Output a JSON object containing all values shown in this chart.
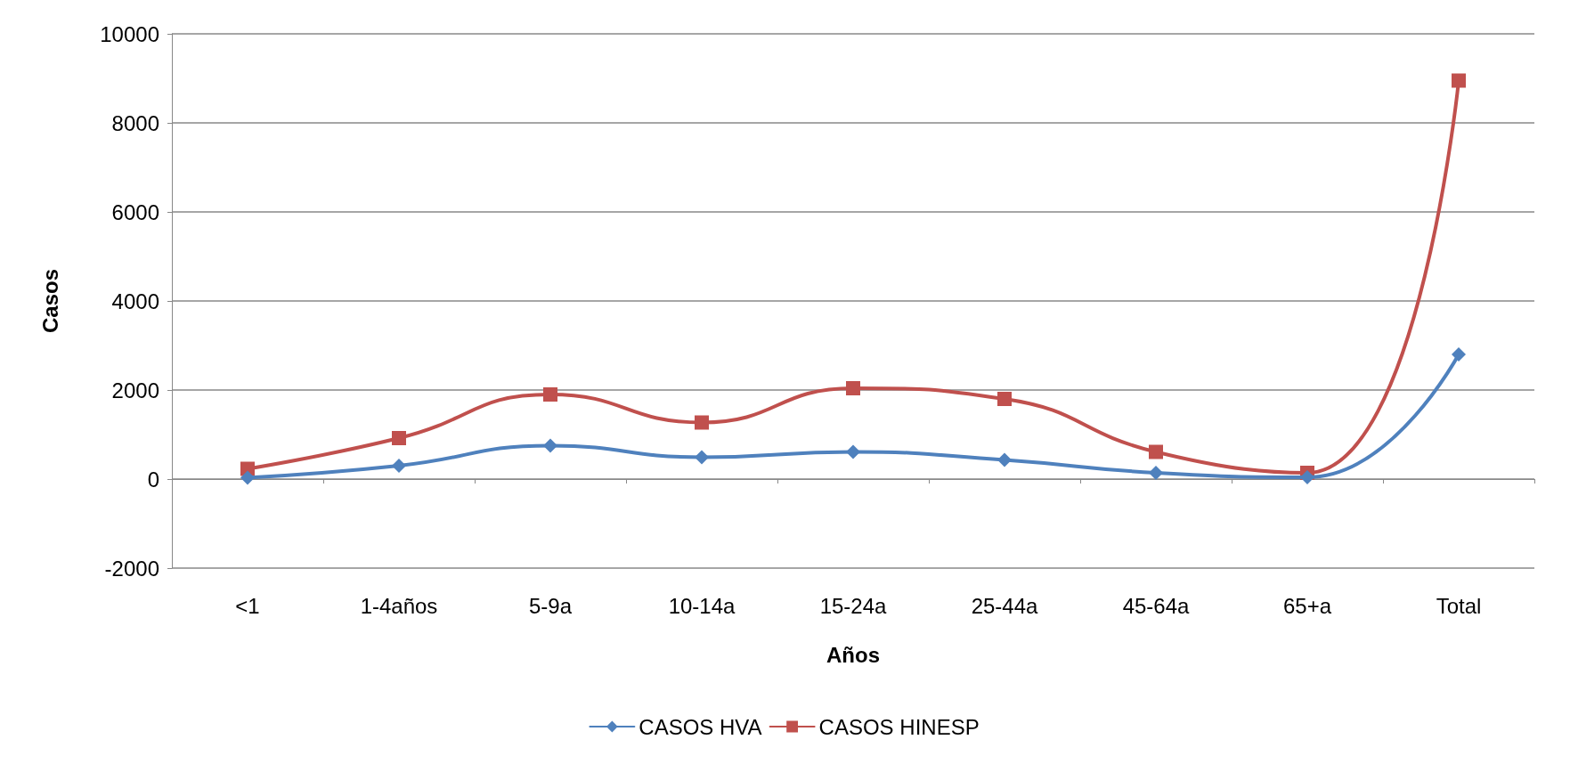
{
  "chart_data": {
    "type": "line",
    "xlabel": "Años",
    "ylabel": "Casos",
    "categories": [
      "<1",
      "1-4años",
      "5-9a",
      "10-14a",
      "15-24a",
      "25-44a",
      "45-64a",
      "65+a",
      "Total"
    ],
    "series": [
      {
        "name": "CASOS HVA",
        "color": "#4f81bd",
        "marker": "diamond",
        "values": [
          30,
          300,
          750,
          490,
          610,
          430,
          140,
          40,
          2800
        ]
      },
      {
        "name": "CASOS HINESP",
        "color": "#c0504d",
        "marker": "square",
        "values": [
          230,
          920,
          1900,
          1270,
          2040,
          1800,
          610,
          140,
          8950
        ]
      }
    ],
    "ylim": [
      -2000,
      10000
    ],
    "yticks": [
      -2000,
      0,
      2000,
      4000,
      6000,
      8000,
      10000
    ],
    "grid": "y",
    "legend": "bottom",
    "line_style": "solid"
  }
}
